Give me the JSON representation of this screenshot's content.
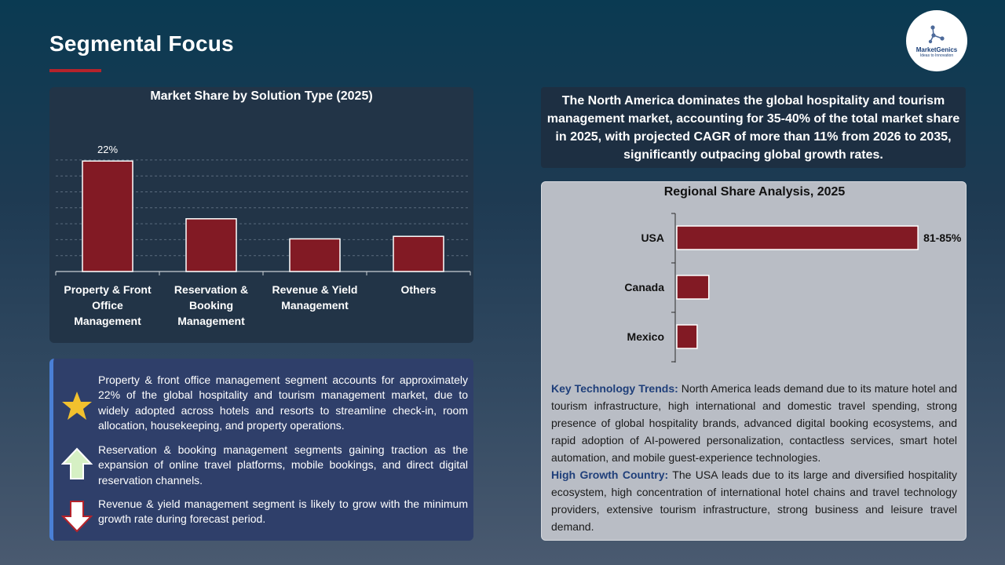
{
  "page": {
    "title": "Segmental Focus"
  },
  "logo": {
    "name": "MarketGenics",
    "tagline": "Ideas to Innovation"
  },
  "chart_data": [
    {
      "type": "bar",
      "title": "Market Share by Solution Type (2025)",
      "categories": [
        "Property & Front Office Management",
        "Reservation & Booking Management",
        "Revenue & Yield Management",
        "Others"
      ],
      "category_lines": [
        [
          "Property & Front",
          "Office",
          "Management"
        ],
        [
          "Reservation &",
          "Booking",
          "Management"
        ],
        [
          "Revenue & Yield",
          "Management"
        ],
        [
          "Others"
        ]
      ],
      "values": [
        22,
        10.5,
        6.5,
        7
      ],
      "data_labels": [
        "22%",
        "",
        "",
        ""
      ],
      "ylim": [
        0,
        25
      ],
      "grid": true,
      "colors": {
        "bar": "#821a24"
      }
    },
    {
      "type": "bar",
      "orientation": "horizontal",
      "title": "Regional Share Analysis, 2025",
      "categories": [
        "USA",
        "Canada",
        "Mexico"
      ],
      "values": [
        83,
        11,
        7
      ],
      "data_labels": [
        "81-85%",
        "",
        ""
      ],
      "xlim": [
        0,
        100
      ],
      "colors": {
        "bar": "#821a24"
      }
    }
  ],
  "bullets": [
    {
      "icon": "star-icon",
      "text": "Property & front office management segment accounts for approximately 22% of the global hospitality and tourism management market, due to widely adopted across hotels and resorts to streamline check-in, room allocation, housekeeping, and property operations."
    },
    {
      "icon": "arrow-up-icon",
      "text": "Reservation & booking management segments gaining traction as the expansion of online travel platforms, mobile bookings, and direct digital reservation channels."
    },
    {
      "icon": "arrow-down-icon",
      "text": "Revenue & yield management segment is likely to grow with the minimum growth rate during forecast period."
    }
  ],
  "info": {
    "text": "The North America dominates the global hospitality and tourism management market, accounting for 35-40% of the total market share in 2025, with projected CAGR of more than 11% from 2026 to 2035, significantly outpacing global growth rates."
  },
  "trends": {
    "tech_heading": "Key Technology Trends:",
    "tech_text": " North America leads demand due to its mature hotel and tourism infrastructure, high international and domestic travel spending, strong presence of global hospitality brands, advanced digital booking ecosystems, and rapid adoption of AI-powered personalization, contactless services, smart hotel automation, and mobile guest-experience technologies.",
    "growth_heading": "High Growth Country:",
    "growth_text": " The USA leads due to its large and diversified hospitality ecosystem, high concentration of international hotel chains and travel technology providers, extensive tourism infrastructure, strong business and leisure travel demand."
  },
  "colors": {
    "accent": "#b5232b",
    "bar": "#821a24",
    "star": "#f2c12e",
    "arrow_up": "#d6f0c4",
    "arrow_down": "#ffffff",
    "heading_blue": "#1f3f7a"
  }
}
